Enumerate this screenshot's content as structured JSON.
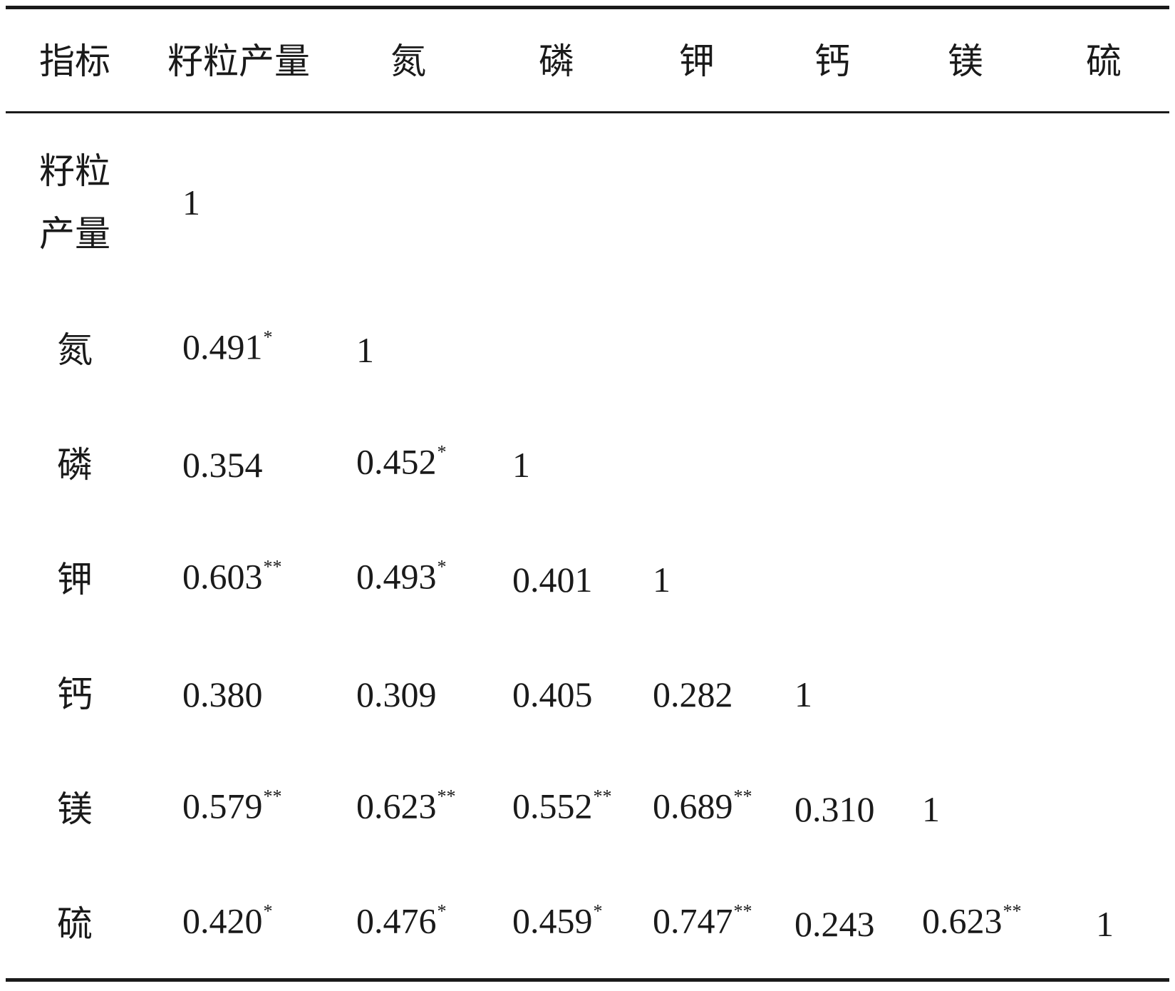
{
  "table": {
    "header": [
      "指标",
      "籽粒产量",
      "氮",
      "磷",
      "钾",
      "钙",
      "镁",
      "硫"
    ],
    "rows": [
      {
        "label": "籽粒产量",
        "cells": [
          {
            "value": "1"
          }
        ]
      },
      {
        "label": "氮",
        "cells": [
          {
            "value": "0.491",
            "sup": "*"
          },
          {
            "value": "1"
          }
        ]
      },
      {
        "label": "磷",
        "cells": [
          {
            "value": "0.354"
          },
          {
            "value": "0.452",
            "sup": "*"
          },
          {
            "value": "1"
          }
        ]
      },
      {
        "label": "钾",
        "cells": [
          {
            "value": "0.603",
            "sup": "**"
          },
          {
            "value": "0.493",
            "sup": "*"
          },
          {
            "value": "0.401"
          },
          {
            "value": "1"
          }
        ]
      },
      {
        "label": "钙",
        "cells": [
          {
            "value": "0.380"
          },
          {
            "value": "0.309"
          },
          {
            "value": "0.405"
          },
          {
            "value": "0.282"
          },
          {
            "value": "1"
          }
        ]
      },
      {
        "label": "镁",
        "cells": [
          {
            "value": "0.579",
            "sup": "**"
          },
          {
            "value": "0.623",
            "sup": "**"
          },
          {
            "value": "0.552",
            "sup": "**"
          },
          {
            "value": "0.689",
            "sup": "**"
          },
          {
            "value": "0.310"
          },
          {
            "value": "1"
          }
        ]
      },
      {
        "label": "硫",
        "cells": [
          {
            "value": "0.420",
            "sup": "*"
          },
          {
            "value": "0.476",
            "sup": "*"
          },
          {
            "value": "0.459",
            "sup": "*"
          },
          {
            "value": "0.747",
            "sup": "**"
          },
          {
            "value": "0.243"
          },
          {
            "value": "0.623",
            "sup": "**"
          },
          {
            "value": "1"
          }
        ]
      }
    ]
  }
}
